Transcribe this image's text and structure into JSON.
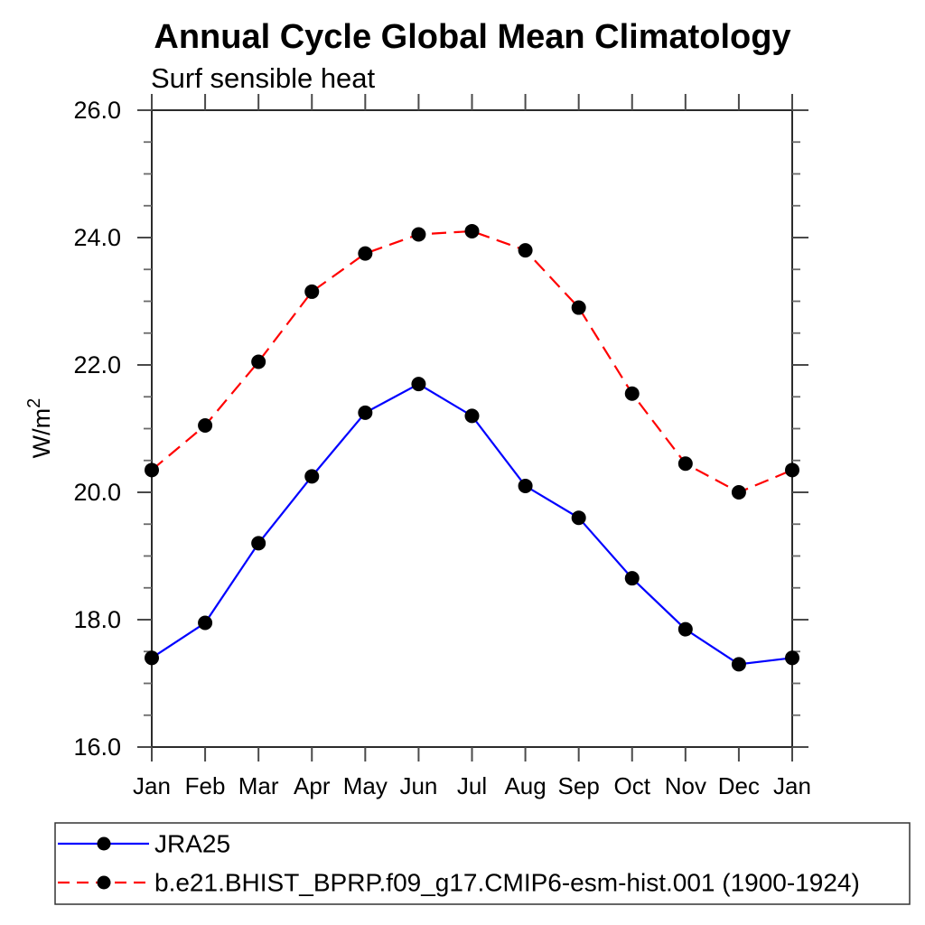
{
  "chart_data": {
    "type": "line",
    "title": "Annual Cycle Global Mean Climatology",
    "subtitle": "Surf sensible heat",
    "ylabel": "W/m²",
    "ylabel_base": "W/m",
    "ylabel_sup": "2",
    "x_categories": [
      "Jan",
      "Feb",
      "Mar",
      "Apr",
      "May",
      "Jun",
      "Jul",
      "Aug",
      "Sep",
      "Oct",
      "Nov",
      "Dec",
      "Jan"
    ],
    "ylim": [
      16.0,
      26.0
    ],
    "ytick_labels": [
      "16.0",
      "18.0",
      "20.0",
      "22.0",
      "24.0",
      "26.0"
    ],
    "ytick_major_step": 2.0,
    "ytick_minor_step": 0.5,
    "grid": false,
    "legend_position": "bottom-left-box",
    "colors": {
      "axis": "#2b2b2b",
      "tick": "#4a4a4a",
      "minor_tick": "#6a6a6a",
      "marker": "#000000",
      "series1": "#0000ff",
      "series2": "#ff0000"
    },
    "series": [
      {
        "name": "JRA25",
        "color": "#0000ff",
        "line_style": "solid",
        "marker": "filled-circle",
        "marker_color": "#000000",
        "values": [
          17.4,
          17.95,
          19.2,
          20.25,
          21.25,
          21.7,
          21.2,
          20.1,
          19.6,
          18.65,
          17.85,
          17.3,
          17.4
        ]
      },
      {
        "name": "b.e21.BHIST_BPRP.f09_g17.CMIP6-esm-hist.001 (1900-1924)",
        "color": "#ff0000",
        "line_style": "dashed",
        "marker": "filled-circle",
        "marker_color": "#000000",
        "values": [
          20.35,
          21.05,
          22.05,
          23.15,
          23.75,
          24.05,
          24.1,
          23.8,
          22.9,
          21.55,
          20.45,
          20.0,
          20.35
        ]
      }
    ]
  }
}
